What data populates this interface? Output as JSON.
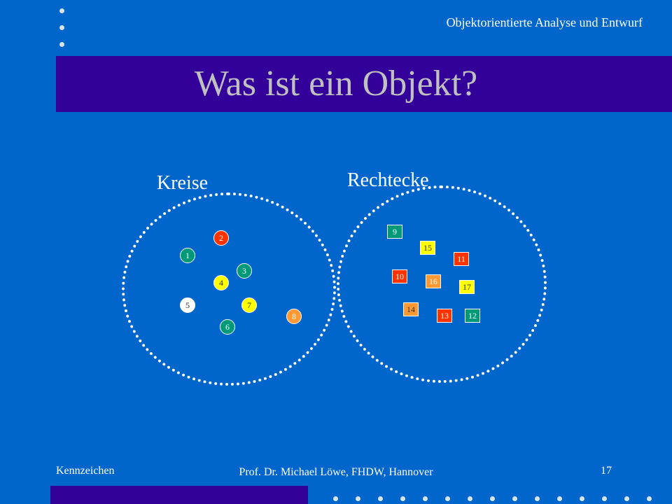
{
  "header": {
    "course_title": "Objektorientierte Analyse und Entwurf"
  },
  "slide": {
    "title": "Was ist ein Objekt?"
  },
  "sets": [
    {
      "label": "Kreise",
      "objects": [
        {
          "label": "1",
          "shape": "circle",
          "color": "#009977",
          "text_color": "#ffffff"
        },
        {
          "label": "2",
          "shape": "circle",
          "color": "#ff3300",
          "text_color": "#ffffff"
        },
        {
          "label": "3",
          "shape": "circle",
          "color": "#009977",
          "text_color": "#ffffff"
        },
        {
          "label": "4",
          "shape": "circle",
          "color": "#ffff00",
          "text_color": "#333333"
        },
        {
          "label": "5",
          "shape": "circle",
          "color": "#ffffff",
          "text_color": "#333333"
        },
        {
          "label": "6",
          "shape": "circle",
          "color": "#009977",
          "text_color": "#ffffff"
        },
        {
          "label": "7",
          "shape": "circle",
          "color": "#ffff00",
          "text_color": "#333333"
        },
        {
          "label": "8",
          "shape": "circle",
          "color": "#ff9933",
          "text_color": "#ffffff"
        }
      ]
    },
    {
      "label": "Rechtecke",
      "objects": [
        {
          "label": "9",
          "shape": "rect",
          "color": "#009977",
          "text_color": "#ffffff"
        },
        {
          "label": "15",
          "shape": "rect",
          "color": "#ffff00",
          "text_color": "#333333"
        },
        {
          "label": "11",
          "shape": "rect",
          "color": "#ff3300",
          "text_color": "#ffffff"
        },
        {
          "label": "10",
          "shape": "rect",
          "color": "#ff3300",
          "text_color": "#ffffff"
        },
        {
          "label": "16",
          "shape": "rect",
          "color": "#ff9933",
          "text_color": "#ffffff"
        },
        {
          "label": "17",
          "shape": "rect",
          "color": "#ffff00",
          "text_color": "#333333"
        },
        {
          "label": "14",
          "shape": "rect",
          "color": "#ff9933",
          "text_color": "#333333"
        },
        {
          "label": "13",
          "shape": "rect",
          "color": "#ff3300",
          "text_color": "#ffffff"
        },
        {
          "label": "12",
          "shape": "rect",
          "color": "#009977",
          "text_color": "#ffffff"
        }
      ]
    }
  ],
  "footer": {
    "left": "Kennzeichen",
    "center": "Prof. Dr. Michael Löwe, FHDW, Hannover",
    "page_number": "17"
  }
}
